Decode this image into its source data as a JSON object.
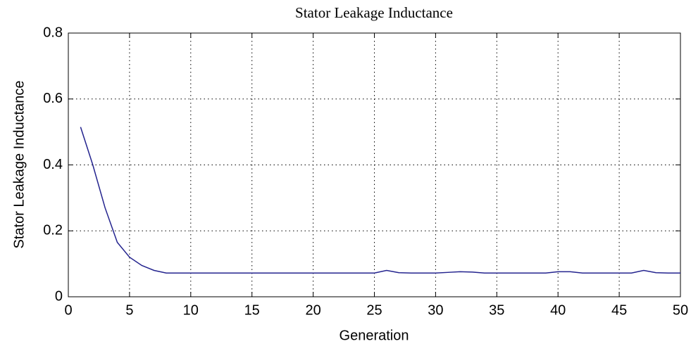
{
  "chart_data": {
    "type": "line",
    "title": "Stator Leakage Inductance",
    "xlabel": "Generation",
    "ylabel": "Stator Leakage Inductance",
    "x": [
      1,
      2,
      3,
      4,
      5,
      6,
      7,
      8,
      9,
      10,
      11,
      12,
      13,
      14,
      15,
      16,
      17,
      18,
      19,
      20,
      21,
      22,
      23,
      24,
      25,
      26,
      27,
      28,
      29,
      30,
      31,
      32,
      33,
      34,
      35,
      36,
      37,
      38,
      39,
      40,
      41,
      42,
      43,
      44,
      45,
      46,
      47,
      48,
      49,
      50
    ],
    "series": [
      {
        "name": "Stator Leakage Inductance",
        "color": "#23238e",
        "values": [
          0.515,
          0.4,
          0.27,
          0.165,
          0.12,
          0.095,
          0.08,
          0.072,
          0.072,
          0.072,
          0.072,
          0.072,
          0.072,
          0.072,
          0.072,
          0.072,
          0.072,
          0.072,
          0.072,
          0.072,
          0.072,
          0.072,
          0.072,
          0.072,
          0.072,
          0.08,
          0.073,
          0.072,
          0.072,
          0.072,
          0.074,
          0.076,
          0.075,
          0.072,
          0.072,
          0.072,
          0.072,
          0.072,
          0.072,
          0.076,
          0.076,
          0.072,
          0.072,
          0.072,
          0.072,
          0.072,
          0.08,
          0.073,
          0.072,
          0.072
        ]
      }
    ],
    "xlim": [
      0,
      50
    ],
    "xticks": [
      0,
      5,
      10,
      15,
      20,
      25,
      30,
      35,
      40,
      45,
      50
    ],
    "ylim": [
      0,
      0.8
    ],
    "yticks": [
      0,
      0.2,
      0.4,
      0.6,
      0.8
    ],
    "grid": true
  }
}
